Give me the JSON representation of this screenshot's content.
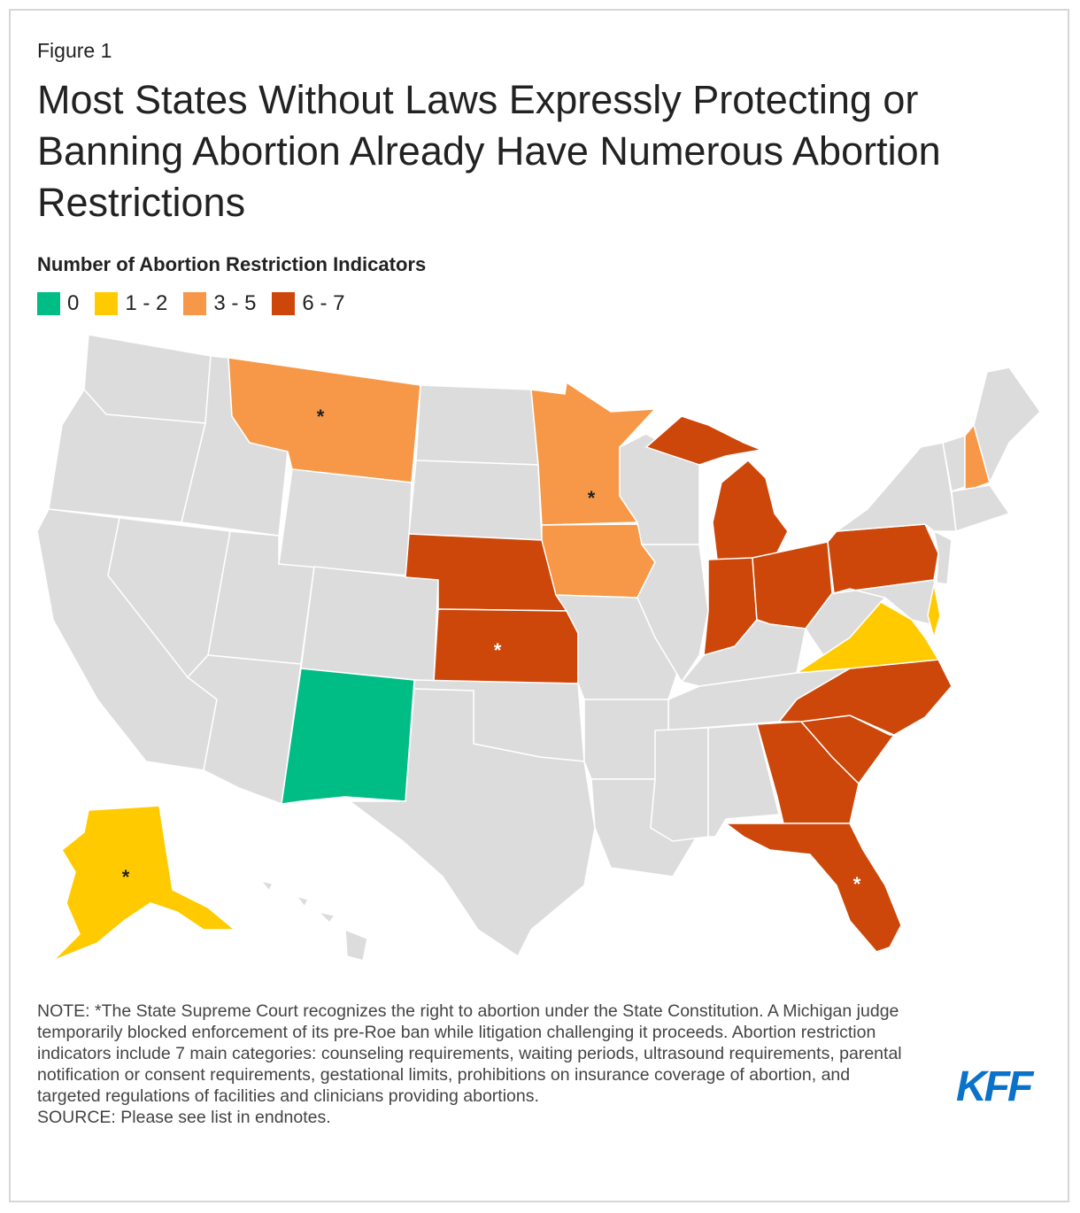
{
  "figure_label": "Figure 1",
  "title": "Most States Without Laws Expressly Protecting or Banning Abortion Already Have Numerous Abortion Restrictions",
  "legend": {
    "title": "Number of Abortion Restriction Indicators",
    "items": [
      {
        "label": "0",
        "color": "#00bd86"
      },
      {
        "label": "1 - 2",
        "color": "#ffcb00"
      },
      {
        "label": "3 - 5",
        "color": "#f69847"
      },
      {
        "label": "6 - 7",
        "color": "#cc4709"
      }
    ]
  },
  "colors": {
    "other": "#dcdcdc",
    "zero": "#00bd86",
    "low": "#ffcb00",
    "mid": "#f69847",
    "high": "#cc4709"
  },
  "chart_data": {
    "type": "choropleth",
    "title": "Number of Abortion Restriction Indicators",
    "categories": [
      "0",
      "1 - 2",
      "3 - 5",
      "6 - 7"
    ],
    "states": [
      {
        "state": "New Mexico",
        "category": "0",
        "asterisk": false
      },
      {
        "state": "Alaska",
        "category": "1 - 2",
        "asterisk": true
      },
      {
        "state": "Virginia",
        "category": "1 - 2",
        "asterisk": false
      },
      {
        "state": "Delaware",
        "category": "1 - 2",
        "asterisk": false
      },
      {
        "state": "Montana",
        "category": "3 - 5",
        "asterisk": true
      },
      {
        "state": "Minnesota",
        "category": "3 - 5",
        "asterisk": true
      },
      {
        "state": "Iowa",
        "category": "3 - 5",
        "asterisk": false
      },
      {
        "state": "New Hampshire",
        "category": "3 - 5",
        "asterisk": false
      },
      {
        "state": "Nebraska",
        "category": "6 - 7",
        "asterisk": false
      },
      {
        "state": "Kansas",
        "category": "6 - 7",
        "asterisk": true
      },
      {
        "state": "Michigan",
        "category": "6 - 7",
        "asterisk": false
      },
      {
        "state": "Indiana",
        "category": "6 - 7",
        "asterisk": false
      },
      {
        "state": "Ohio",
        "category": "6 - 7",
        "asterisk": false
      },
      {
        "state": "Pennsylvania",
        "category": "6 - 7",
        "asterisk": false
      },
      {
        "state": "North Carolina",
        "category": "6 - 7",
        "asterisk": false
      },
      {
        "state": "South Carolina",
        "category": "6 - 7",
        "asterisk": false
      },
      {
        "state": "Georgia",
        "category": "6 - 7",
        "asterisk": false
      },
      {
        "state": "Florida",
        "category": "6 - 7",
        "asterisk": true
      }
    ]
  },
  "map": {
    "asterisk": "*"
  },
  "note": "NOTE: *The State Supreme Court recognizes the right to abortion under the State Constitution. A Michigan judge temporarily blocked enforcement of its pre-Roe ban while litigation challenging it proceeds. Abortion restriction indicators include 7 main categories: counseling requirements, waiting periods, ultrasound requirements, parental notification or consent requirements, gestational limits, prohibitions on insurance coverage of abortion, and targeted regulations of facilities and clinicians providing abortions.",
  "source": "SOURCE: Please see list in endnotes.",
  "logo": "KFF"
}
